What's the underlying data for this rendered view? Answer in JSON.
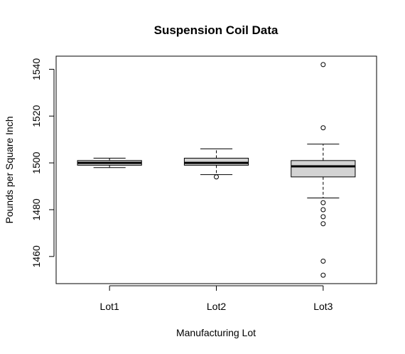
{
  "chart_data": {
    "type": "boxplot",
    "title": "Suspension Coil Data",
    "xlabel": "Manufacturing Lot",
    "ylabel": "Pounds per Square Inch",
    "categories": [
      "Lot1",
      "Lot2",
      "Lot3"
    ],
    "y_ticks": [
      1460,
      1480,
      1500,
      1520,
      1540
    ],
    "ylim": [
      1448.4,
      1545.6
    ],
    "box_fill": "#d3d3d3",
    "series": [
      {
        "category": "Lot1",
        "whisker_low": 1498,
        "q1": 1499,
        "median": 1500,
        "q3": 1501,
        "whisker_high": 1502,
        "outliers": []
      },
      {
        "category": "Lot2",
        "whisker_low": 1495,
        "q1": 1499,
        "median": 1500,
        "q3": 1502,
        "whisker_high": 1506,
        "outliers": [
          1494
        ]
      },
      {
        "category": "Lot3",
        "whisker_low": 1485,
        "q1": 1494,
        "median": 1498.5,
        "q3": 1501,
        "whisker_high": 1508,
        "outliers": [
          1542,
          1515,
          1483,
          1480,
          1477,
          1474,
          1458,
          1452
        ]
      }
    ]
  }
}
